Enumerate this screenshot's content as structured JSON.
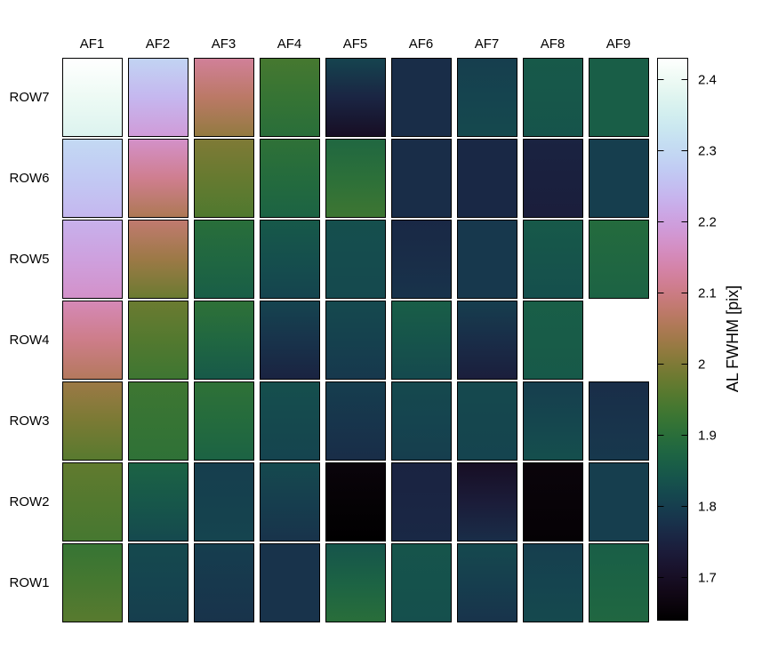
{
  "chart_data": {
    "type": "heatmap",
    "title": "",
    "columns": [
      "AF1",
      "AF2",
      "AF3",
      "AF4",
      "AF5",
      "AF6",
      "AF7",
      "AF8",
      "AF9"
    ],
    "rows": [
      "ROW7",
      "ROW6",
      "ROW5",
      "ROW4",
      "ROW3",
      "ROW2",
      "ROW1"
    ],
    "colorbar": {
      "label": "AL FWHM [pix]",
      "range": [
        1.64,
        2.43
      ],
      "ticks": [
        1.7,
        1.8,
        1.9,
        2,
        2.1,
        2.2,
        2.3,
        2.4
      ],
      "tick_labels": [
        "1.7",
        "1.8",
        "1.9",
        "2",
        "2.1",
        "2.2",
        "2.3",
        "2.4"
      ],
      "colormap": "cubehelix"
    },
    "cells_note": "each cell shows a vertical gradient: [top value, bottom value]; null = no data",
    "cells": [
      [
        [
          2.43,
          2.37
        ],
        [
          2.29,
          2.19
        ],
        [
          2.12,
          2.02
        ],
        [
          1.94,
          1.9
        ],
        [
          1.81,
          1.7
        ],
        [
          1.77,
          1.77
        ],
        [
          1.8,
          1.82
        ],
        [
          1.85,
          1.84
        ],
        [
          1.86,
          1.86
        ]
      ],
      [
        [
          2.3,
          2.24
        ],
        [
          2.17,
          2.05
        ],
        [
          2.0,
          1.95
        ],
        [
          1.91,
          1.87
        ],
        [
          1.88,
          1.93
        ],
        [
          1.77,
          1.77
        ],
        [
          1.76,
          1.76
        ],
        [
          1.75,
          1.74
        ],
        [
          1.8,
          1.8
        ]
      ],
      [
        [
          2.23,
          2.17
        ],
        [
          2.08,
          1.98
        ],
        [
          1.9,
          1.86
        ],
        [
          1.85,
          1.81
        ],
        [
          1.83,
          1.82
        ],
        [
          1.76,
          1.78
        ],
        [
          1.79,
          1.79
        ],
        [
          1.85,
          1.83
        ],
        [
          1.89,
          1.87
        ]
      ],
      [
        [
          2.15,
          2.06
        ],
        [
          1.98,
          1.93
        ],
        [
          1.91,
          1.85
        ],
        [
          1.81,
          1.75
        ],
        [
          1.82,
          1.79
        ],
        [
          1.86,
          1.82
        ],
        [
          1.8,
          1.74
        ],
        [
          1.86,
          1.85
        ],
        null
      ],
      [
        [
          2.03,
          1.96
        ],
        [
          1.93,
          1.91
        ],
        [
          1.91,
          1.87
        ],
        [
          1.83,
          1.81
        ],
        [
          1.8,
          1.77
        ],
        [
          1.82,
          1.8
        ],
        [
          1.82,
          1.81
        ],
        [
          1.8,
          1.83
        ],
        [
          1.77,
          1.79
        ]
      ],
      [
        [
          1.97,
          1.94
        ],
        [
          1.87,
          1.82
        ],
        [
          1.8,
          1.81
        ],
        [
          1.82,
          1.78
        ],
        [
          1.66,
          1.64
        ],
        [
          1.75,
          1.76
        ],
        [
          1.7,
          1.77
        ],
        [
          1.66,
          1.65
        ],
        [
          1.8,
          1.8
        ]
      ],
      [
        [
          1.92,
          1.96
        ],
        [
          1.82,
          1.8
        ],
        [
          1.8,
          1.78
        ],
        [
          1.78,
          1.78
        ],
        [
          1.84,
          1.9
        ],
        [
          1.84,
          1.83
        ],
        [
          1.82,
          1.78
        ],
        [
          1.8,
          1.82
        ],
        [
          1.86,
          1.88
        ]
      ]
    ]
  }
}
